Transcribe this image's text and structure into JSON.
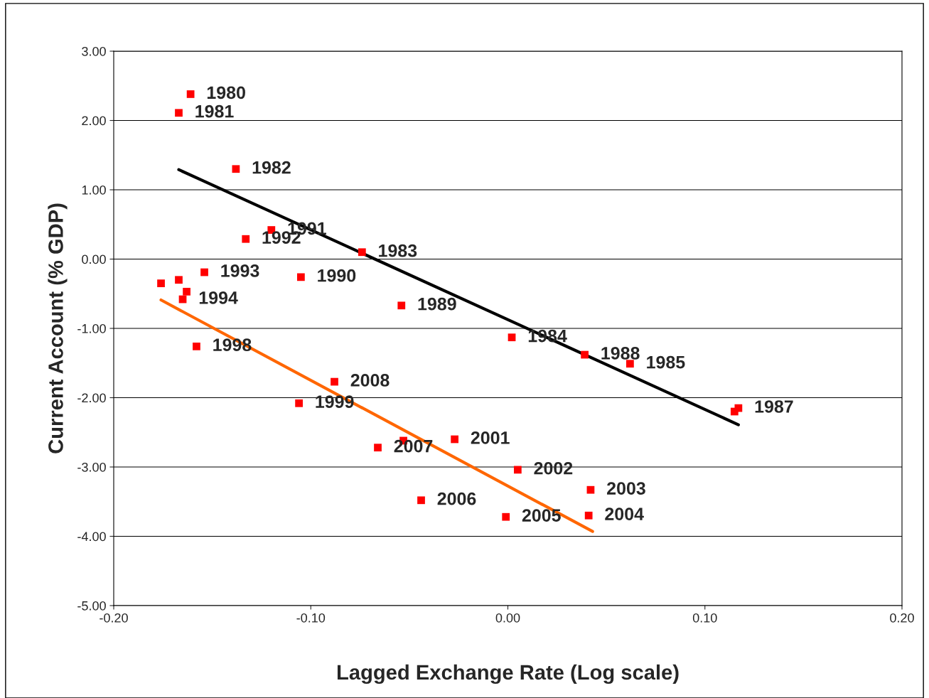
{
  "chart_data": {
    "type": "scatter",
    "xlabel": "Lagged Exchange Rate (Log scale)",
    "ylabel": "Current Account (% GDP)",
    "xlim": [
      -0.2,
      0.2
    ],
    "ylim": [
      -5,
      3
    ],
    "xticks": [
      {
        "value": -0.2,
        "label": "-0.20"
      },
      {
        "value": -0.1,
        "label": "-0.10"
      },
      {
        "value": 0,
        "label": "0.00"
      },
      {
        "value": 0.1,
        "label": "0.10"
      },
      {
        "value": 0.2,
        "label": "0.20"
      }
    ],
    "yticks": [
      {
        "value": -5,
        "label": "-5.00"
      },
      {
        "value": -4,
        "label": "-4.00"
      },
      {
        "value": -3,
        "label": "-3.00"
      },
      {
        "value": -2,
        "label": "-2.00"
      },
      {
        "value": -1,
        "label": "-1.00"
      },
      {
        "value": 0,
        "label": "0.00"
      },
      {
        "value": 1,
        "label": "1.00"
      },
      {
        "value": 2,
        "label": "2.00"
      },
      {
        "value": 3,
        "label": "3.00"
      }
    ],
    "grid": "y",
    "marker": "square",
    "series": [
      {
        "color": "#ff0000",
        "x": [
          -0.161,
          -0.167,
          -0.138,
          -0.12,
          -0.133,
          -0.074,
          -0.154,
          -0.105,
          -0.176,
          -0.167,
          -0.163,
          -0.165,
          -0.054,
          0.002,
          -0.158,
          0.039,
          0.062,
          -0.088,
          -0.106,
          0.117,
          0.115,
          -0.027,
          -0.066,
          -0.053,
          0.005,
          0.042,
          -0.044,
          -0.001,
          0.041
        ],
        "values": [
          2.38,
          2.11,
          1.3,
          0.42,
          0.29,
          0.1,
          -0.19,
          -0.26,
          -0.35,
          -0.3,
          -0.47,
          -0.58,
          -0.67,
          -1.13,
          -1.26,
          -1.38,
          -1.51,
          -1.77,
          -2.08,
          -2.15,
          -2.2,
          -2.6,
          -2.72,
          -2.62,
          -3.04,
          -3.33,
          -3.48,
          -3.72,
          -3.7
        ]
      },
      {
        "type": "line",
        "marker": "none",
        "color": "#000000",
        "x": [
          -0.167,
          0.117
        ],
        "values": [
          1.29,
          -2.39
        ]
      },
      {
        "type": "line",
        "marker": "none",
        "color": "#ff6600",
        "x": [
          -0.176,
          0.043
        ],
        "values": [
          -0.59,
          -3.93
        ]
      }
    ],
    "annotations": [
      {
        "text": "1980",
        "x": -0.161,
        "y": 2.38
      },
      {
        "text": "1981",
        "x": -0.167,
        "y": 2.11
      },
      {
        "text": "1982",
        "x": -0.138,
        "y": 1.3
      },
      {
        "text": "1991",
        "x": -0.12,
        "y": 0.42
      },
      {
        "text": "1992",
        "x": -0.133,
        "y": 0.29
      },
      {
        "text": "1983",
        "x": -0.074,
        "y": 0.1
      },
      {
        "text": "1993",
        "x": -0.154,
        "y": -0.19
      },
      {
        "text": "1990",
        "x": -0.105,
        "y": -0.26
      },
      {
        "text": "1994",
        "x": -0.165,
        "y": -0.58
      },
      {
        "text": "1989",
        "x": -0.054,
        "y": -0.67
      },
      {
        "text": "1984",
        "x": 0.002,
        "y": -1.13
      },
      {
        "text": "1998",
        "x": -0.158,
        "y": -1.26
      },
      {
        "text": "1988",
        "x": 0.039,
        "y": -1.38
      },
      {
        "text": "1985",
        "x": 0.062,
        "y": -1.51
      },
      {
        "text": "2008",
        "x": -0.088,
        "y": -1.77
      },
      {
        "text": "1999",
        "x": -0.106,
        "y": -2.08
      },
      {
        "text": "1987",
        "x": 0.117,
        "y": -2.15
      },
      {
        "text": "2001",
        "x": -0.027,
        "y": -2.6
      },
      {
        "text": "2007",
        "x": -0.066,
        "y": -2.72
      },
      {
        "text": "2002",
        "x": 0.005,
        "y": -3.04
      },
      {
        "text": "2003",
        "x": 0.042,
        "y": -3.33
      },
      {
        "text": "2006",
        "x": -0.044,
        "y": -3.48
      },
      {
        "text": "2005",
        "x": -0.001,
        "y": -3.72
      },
      {
        "text": "2004",
        "x": 0.041,
        "y": -3.7
      }
    ]
  }
}
